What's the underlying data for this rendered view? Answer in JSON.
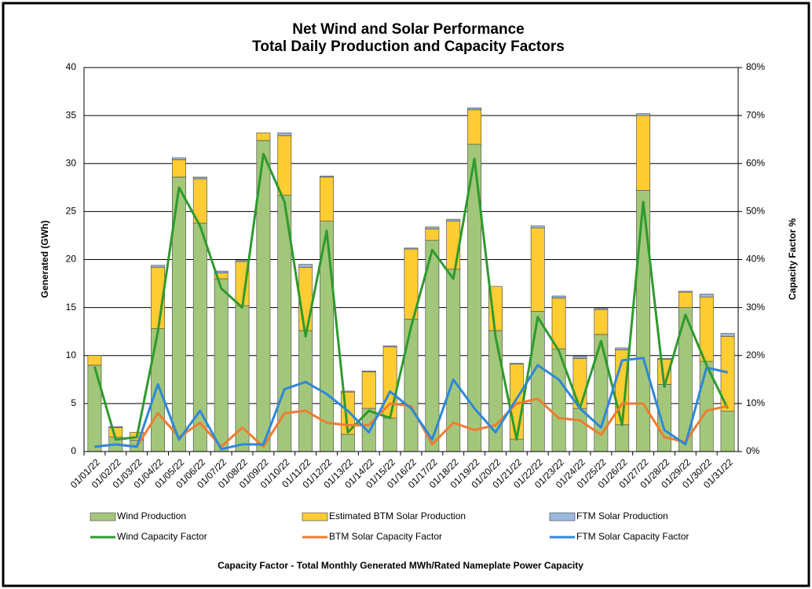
{
  "chart_data": {
    "type": "combo",
    "title": "Net Wind and Solar Performance",
    "subtitle": "Total Daily Production and Capacity Factors",
    "y_label": "Generated (GWh)",
    "y2_label": "Capacity Factor %",
    "footnote": "Capacity Factor  - Total Monthly Generated MWh/Rated Nameplate Power Capacity",
    "categories": [
      "01/01/22",
      "01/02/22",
      "01/03/22",
      "01/04/22",
      "01/05/22",
      "01/06/22",
      "01/07/22",
      "01/08/22",
      "01/09/22",
      "01/10/22",
      "01/11/22",
      "01/12/22",
      "01/13/22",
      "01/14/22",
      "01/15/22",
      "01/16/22",
      "01/17/22",
      "01/18/22",
      "01/19/22",
      "01/20/22",
      "01/21/22",
      "01/22/22",
      "01/23/22",
      "01/24/22",
      "01/25/22",
      "01/26/22",
      "01/27/22",
      "01/28/22",
      "01/29/22",
      "01/30/22",
      "01/31/22"
    ],
    "series": [
      {
        "name": "Wind Production",
        "type": "bar",
        "color": "#a3c77a",
        "values": [
          9,
          1.5,
          1.2,
          12.8,
          28.6,
          23.8,
          18,
          15.2,
          32.4,
          26.7,
          12.6,
          24,
          1.8,
          4.5,
          3.5,
          13.8,
          22,
          19,
          32,
          12.6,
          1.3,
          14.6,
          10.7,
          4.5,
          12.2,
          2.8,
          27.2,
          7,
          15,
          9.4,
          4.2
        ]
      },
      {
        "name": "Estimated BTM Solar Production",
        "type": "bar",
        "color": "#ffcc33",
        "values": [
          1,
          1,
          0.8,
          6.4,
          1.8,
          4.6,
          0.6,
          4.6,
          0.8,
          6.2,
          6.6,
          4.6,
          4.4,
          3.8,
          7.4,
          7.3,
          1.2,
          5,
          3.6,
          4.6,
          7.8,
          8.7,
          5.3,
          5.2,
          2.6,
          7.8,
          7.8,
          2.6,
          1.6,
          6.7,
          7.8
        ]
      },
      {
        "name": "FTM Solar Production",
        "type": "bar",
        "color": "#9bb7e0",
        "values": [
          0,
          0.1,
          0,
          0.2,
          0.2,
          0.2,
          0.2,
          0.1,
          0,
          0.3,
          0.3,
          0.1,
          0.1,
          0.1,
          0.1,
          0.1,
          0.2,
          0.2,
          0.2,
          0,
          0.1,
          0.2,
          0.2,
          0.2,
          0.1,
          0.2,
          0.2,
          0.1,
          0.1,
          0.3,
          0.3
        ]
      },
      {
        "name": "Wind Capacity Factor",
        "type": "line",
        "axis": "y2",
        "color": "#2e9a2e",
        "values": [
          17.7,
          2.5,
          3,
          25,
          55,
          47,
          34,
          30,
          62,
          52,
          24,
          46,
          4,
          8.5,
          7,
          26,
          42,
          36,
          61,
          24,
          2.5,
          28,
          21,
          9,
          23,
          5.5,
          52,
          13.5,
          28.5,
          18,
          9
        ]
      },
      {
        "name": "BTM Solar Capacity Factor",
        "type": "line",
        "axis": "y2",
        "color": "#ed7d31",
        "values": [
          1,
          1.5,
          1,
          8,
          3,
          6,
          1,
          5,
          1,
          8,
          8.5,
          6,
          5.5,
          5.5,
          10,
          9.5,
          1.5,
          6,
          4.5,
          5.5,
          10,
          11,
          7,
          6.5,
          3.5,
          10,
          10,
          3,
          2,
          8.5,
          9.5
        ]
      },
      {
        "name": "FTM Solar Capacity Factor",
        "type": "line",
        "axis": "y2",
        "color": "#2f87d8",
        "values": [
          1,
          1.5,
          1,
          14,
          2.5,
          8.5,
          0.5,
          1.5,
          1.5,
          13,
          14.5,
          12,
          8.5,
          4,
          12.5,
          9,
          2.5,
          15,
          9,
          4,
          11,
          18,
          15,
          9,
          5,
          19,
          19.5,
          4.5,
          1.5,
          17.5,
          16.5
        ]
      }
    ],
    "ylim": [
      0,
      40
    ],
    "yticks": [
      0,
      5,
      10,
      15,
      20,
      25,
      30,
      35,
      40
    ],
    "y2lim": [
      0,
      80
    ],
    "y2ticks": [
      {
        "value": 0,
        "label": "0%"
      },
      {
        "value": 10,
        "label": "10%"
      },
      {
        "value": 20,
        "label": "20%"
      },
      {
        "value": 30,
        "label": "30%"
      },
      {
        "value": 40,
        "label": "40%"
      },
      {
        "value": 50,
        "label": "50%"
      },
      {
        "value": 60,
        "label": "60%"
      },
      {
        "value": 70,
        "label": "70%"
      },
      {
        "value": 80,
        "label": "80%"
      }
    ],
    "grid": true
  }
}
